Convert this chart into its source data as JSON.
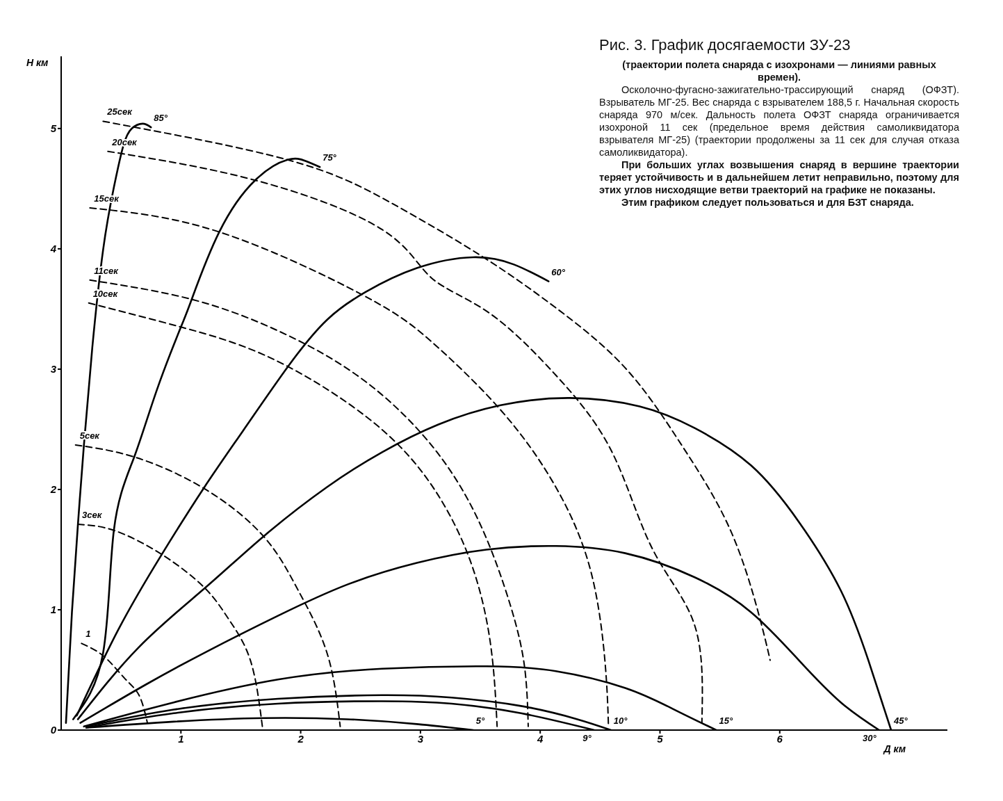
{
  "chart_data": {
    "type": "line",
    "title": "Рис. 3. График досягаемости ЗУ-23",
    "subtitle": "(траектории полета снаряда с изохронами — линиями равных времен).",
    "xlabel": "Д км",
    "ylabel": "Н км",
    "annotations": [
      "Осколочно-фугасно-зажигательно-трассирующий снаряд (ОФЗТ). Взрыватель МГ-25. Вес снаряда с взрывателем 188,5 г. Начальная скорость снаряда 970 м/сек. Дальность полета ОФЗТ снаряда ограничивается изохроной 11 сек (предельное время действия самоликвидатора взрывателя МГ-25) (траектории продолжены за 11 сек для случая отказа самоликвидатора).",
      "При больших углах возвышения снаряд в вершине траектории теряет устойчивость и в дальнейшем летит неправильно, поэтому для этих углов нисходящие ветви траекторий на графике не показаны.",
      "Этим графиком следует пользоваться и для БЗТ снаряда."
    ],
    "xlim": [
      0,
      7.4
    ],
    "ylim": [
      0,
      5.6
    ],
    "xticks": [
      1,
      2,
      3,
      4,
      5,
      6
    ],
    "yticks": [
      0,
      1,
      2,
      3,
      4,
      5
    ],
    "marker": "none",
    "series": [
      {
        "name": "85°",
        "type": "line",
        "line_style": "solid",
        "color": "#000000",
        "x": [
          0.04,
          0.09,
          0.14,
          0.19,
          0.26,
          0.35,
          0.44,
          0.52,
          0.59,
          0.68,
          0.75
        ],
        "values": [
          0.06,
          0.98,
          1.71,
          2.37,
          3.18,
          3.99,
          4.51,
          4.86,
          5.0,
          5.04,
          5.01
        ]
      },
      {
        "name": "75°",
        "type": "line",
        "line_style": "solid",
        "color": "#000000",
        "x": [
          0.1,
          0.35,
          0.44,
          0.61,
          0.8,
          1.0,
          1.09,
          1.32,
          1.62,
          1.89,
          2.04,
          2.16
        ],
        "values": [
          0.09,
          0.64,
          1.66,
          2.27,
          2.83,
          3.35,
          3.58,
          4.14,
          4.57,
          4.74,
          4.73,
          4.68
        ]
      },
      {
        "name": "60°",
        "type": "line",
        "line_style": "solid",
        "color": "#000000",
        "x": [
          0.13,
          0.48,
          0.84,
          1.19,
          1.52,
          1.9,
          2.22,
          2.54,
          2.97,
          3.44,
          3.78,
          4.07
        ],
        "values": [
          0.12,
          0.84,
          1.46,
          2.01,
          2.49,
          3.03,
          3.41,
          3.64,
          3.84,
          3.93,
          3.87,
          3.73
        ]
      },
      {
        "name": "45°",
        "type": "line",
        "line_style": "solid",
        "color": "#000000",
        "x": [
          0.14,
          0.65,
          1.2,
          1.69,
          2.22,
          2.68,
          3.15,
          3.67,
          4.25,
          4.83,
          5.29,
          5.76,
          6.16,
          6.51,
          6.74,
          6.93
        ],
        "values": [
          0.09,
          0.69,
          1.18,
          1.61,
          2.02,
          2.31,
          2.54,
          2.7,
          2.76,
          2.69,
          2.51,
          2.2,
          1.73,
          1.16,
          0.58,
          0
        ]
      },
      {
        "name": "30°",
        "type": "line",
        "line_style": "solid",
        "color": "#000000",
        "x": [
          0.16,
          0.71,
          1.23,
          1.81,
          2.39,
          2.97,
          3.55,
          4.13,
          4.71,
          5.29,
          5.76,
          6.16,
          6.51,
          6.83
        ],
        "values": [
          0.06,
          0.38,
          0.66,
          0.95,
          1.21,
          1.39,
          1.5,
          1.53,
          1.47,
          1.27,
          0.98,
          0.58,
          0.23,
          0
        ]
      },
      {
        "name": "15°",
        "type": "line",
        "line_style": "solid",
        "color": "#000000",
        "x": [
          0.19,
          0.94,
          1.81,
          2.68,
          3.55,
          4.13,
          4.71,
          5.12,
          5.47
        ],
        "values": [
          0.03,
          0.23,
          0.42,
          0.51,
          0.53,
          0.49,
          0.35,
          0.17,
          0
        ]
      },
      {
        "name": "10°",
        "type": "line",
        "line_style": "solid",
        "color": "#000000",
        "x": [
          0.21,
          0.94,
          1.81,
          2.68,
          3.26,
          3.84,
          4.31,
          4.59
        ],
        "values": [
          0.03,
          0.17,
          0.26,
          0.29,
          0.27,
          0.2,
          0.09,
          0
        ]
      },
      {
        "name": "9°",
        "type": "line",
        "line_style": "solid",
        "color": "#000000",
        "x": [
          0.21,
          0.94,
          1.81,
          2.68,
          3.26,
          3.84,
          4.45
        ],
        "values": [
          0.02,
          0.14,
          0.22,
          0.24,
          0.22,
          0.14,
          0
        ]
      },
      {
        "name": "5°",
        "type": "line",
        "line_style": "solid",
        "color": "#000000",
        "x": [
          0.21,
          0.94,
          1.69,
          2.39,
          2.97,
          3.44
        ],
        "values": [
          0.02,
          0.07,
          0.1,
          0.09,
          0.05,
          0
        ]
      },
      {
        "name": "1",
        "type": "line",
        "line_style": "dashed",
        "color": "#000000",
        "x": [
          0.17,
          0.36,
          0.53,
          0.65,
          0.72
        ],
        "values": [
          0.72,
          0.61,
          0.43,
          0.29,
          0.06
        ]
      },
      {
        "name": "3сек",
        "type": "line",
        "line_style": "dashed",
        "color": "#000000",
        "x": [
          0.14,
          0.44,
          0.84,
          1.2,
          1.4,
          1.58,
          1.68
        ],
        "values": [
          1.71,
          1.66,
          1.46,
          1.18,
          0.92,
          0.58,
          0.03
        ]
      },
      {
        "name": "5сек",
        "type": "line",
        "line_style": "dashed",
        "color": "#000000",
        "x": [
          0.12,
          0.61,
          1.19,
          1.69,
          1.98,
          2.22,
          2.33
        ],
        "values": [
          2.37,
          2.27,
          2.01,
          1.61,
          1.16,
          0.64,
          0.03
        ]
      },
      {
        "name": "10сек",
        "type": "line",
        "line_style": "dashed",
        "color": "#000000",
        "x": [
          0.23,
          1.0,
          1.69,
          2.39,
          2.97,
          3.38,
          3.58,
          3.64
        ],
        "values": [
          3.55,
          3.35,
          3.12,
          2.72,
          2.2,
          1.5,
          0.75,
          0.03
        ]
      },
      {
        "name": "11сек",
        "type": "line",
        "line_style": "dashed",
        "color": "#000000",
        "x": [
          0.24,
          1.09,
          1.83,
          2.51,
          3.09,
          3.49,
          3.75,
          3.87,
          3.9
        ],
        "values": [
          3.74,
          3.58,
          3.31,
          2.92,
          2.37,
          1.73,
          1.04,
          0.52,
          0.03
        ]
      },
      {
        "name": "15сек",
        "type": "line",
        "line_style": "dashed",
        "color": "#000000",
        "x": [
          0.24,
          1.32,
          2.51,
          3.09,
          3.67,
          4.13,
          4.42,
          4.54,
          4.57
        ],
        "values": [
          4.34,
          4.14,
          3.62,
          3.23,
          2.66,
          2.02,
          1.33,
          0.58,
          0.03
        ]
      },
      {
        "name": "20сек",
        "type": "line",
        "line_style": "dashed",
        "color": "#000000",
        "x": [
          0.39,
          1.62,
          2.68,
          3.09,
          3.57,
          4.13,
          4.6,
          4.94,
          5.29,
          5.35
        ],
        "values": [
          4.81,
          4.57,
          4.16,
          3.76,
          3.47,
          2.95,
          2.31,
          1.5,
          0.87,
          0.06
        ]
      },
      {
        "name": "25сек",
        "type": "line",
        "line_style": "dashed",
        "color": "#000000",
        "x": [
          0.35,
          1.89,
          2.74,
          3.51,
          4.13,
          4.71,
          5.18,
          5.58,
          5.82,
          5.92
        ],
        "values": [
          5.06,
          4.74,
          4.39,
          3.94,
          3.51,
          3.01,
          2.37,
          1.68,
          0.98,
          0.58
        ]
      }
    ]
  }
}
